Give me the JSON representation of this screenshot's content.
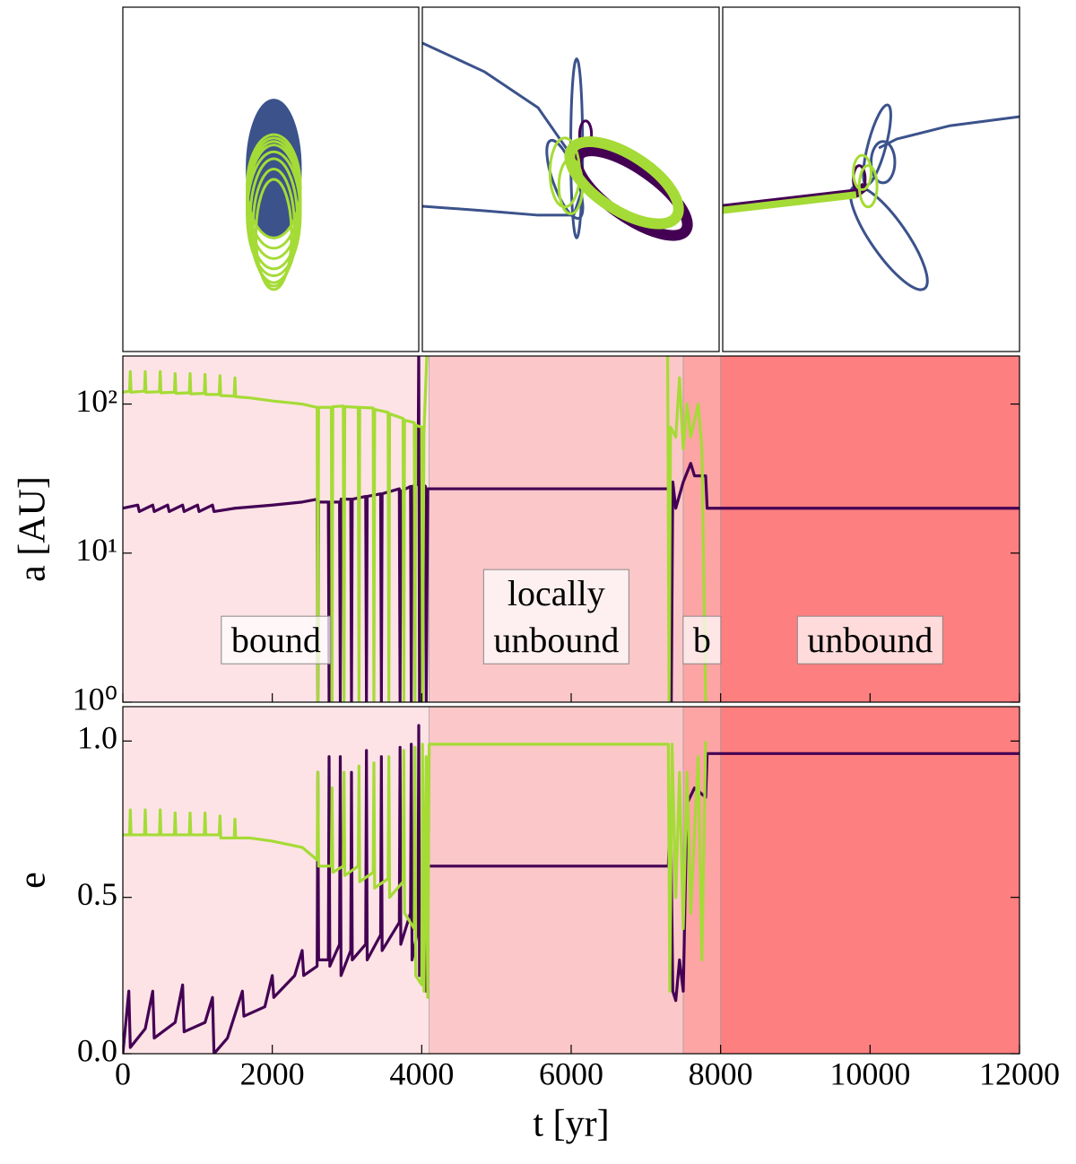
{
  "chart_data": [
    {
      "type": "orbit",
      "xlim": [
        0,
        100
      ],
      "ylim": [
        0,
        100
      ],
      "series": [
        {
          "color": "#3b528b",
          "fill": true,
          "linewidth": 3,
          "ellipses": [
            [
              51,
              53,
              9,
              20,
              0
            ]
          ]
        },
        {
          "color": "#a5db36",
          "linewidth": 3,
          "ellipses": [
            [
              51,
              48,
              9,
              15,
              0
            ],
            [
              51,
              46,
              9,
              16,
              0
            ],
            [
              51,
              44,
              9,
              17,
              0
            ],
            [
              51,
              42,
              9,
              18,
              0
            ],
            [
              51,
              40,
              9,
              18,
              0
            ],
            [
              51,
              38,
              8,
              18,
              0
            ],
            [
              51,
              36,
              7,
              17,
              0
            ],
            [
              51,
              34,
              6,
              16,
              0
            ]
          ]
        }
      ]
    },
    {
      "type": "orbit",
      "xlim": [
        0,
        100
      ],
      "ylim": [
        0,
        100
      ],
      "series": [
        {
          "color": "#3b528b",
          "linewidth": 3,
          "paths": [
            [
              [
                0,
                89.6
              ],
              [
                20.8,
                81.3
              ],
              [
                39,
                70.8
              ],
              [
                49.5,
                57.8
              ],
              [
                54,
                47.4
              ],
              [
                51,
                39.6
              ],
              [
                39,
                39.6
              ],
              [
                20.8,
                40.9
              ],
              [
                0,
                42.2
              ]
            ]
          ],
          "ellipses": [
            [
              52,
              59,
              2,
              26,
              0
            ],
            [
              48,
              50,
              4,
              12,
              20
            ]
          ]
        },
        {
          "color": "#440154",
          "linewidth": 12,
          "ellipses": [
            [
              70.7,
              46,
              22,
              7,
              -35
            ]
          ]
        },
        {
          "color": "#440154",
          "linewidth": 3,
          "ellipses": [
            [
              55,
              63,
              2,
              4,
              0
            ]
          ]
        },
        {
          "color": "#a5db36",
          "linewidth": 12,
          "ellipses": [
            [
              68,
              49,
              21,
              8,
              -33
            ]
          ]
        },
        {
          "color": "#a5db36",
          "linewidth": 3,
          "ellipses": [
            [
              48,
              52,
              5,
              10,
              0
            ],
            [
              50,
              48,
              4,
              8,
              0
            ]
          ]
        }
      ]
    },
    {
      "type": "orbit",
      "xlim": [
        0,
        100
      ],
      "ylim": [
        0,
        100
      ],
      "series": [
        {
          "color": "#3b528b",
          "linewidth": 3,
          "paths": [
            [
              [
                100,
                68.2
              ],
              [
                76.7,
                65.6
              ],
              [
                58.6,
                61.7
              ],
              [
                52.6,
                59.1
              ]
            ]
          ],
          "ellipses": [
            [
              56,
              33,
              6,
              18,
              35
            ],
            [
              52,
              60,
              3,
              12,
              -15
            ],
            [
              54,
              55,
              4,
              6,
              0
            ]
          ]
        },
        {
          "color": "#440154",
          "linewidth": 10,
          "paths": [
            [
              [
                0,
                41.5
              ],
              [
                45,
                46
              ],
              [
                48,
                48
              ]
            ]
          ]
        },
        {
          "color": "#440154",
          "linewidth": 3,
          "ellipses": [
            [
              46,
              50,
              2,
              4,
              0
            ]
          ]
        },
        {
          "color": "#a5db36",
          "linewidth": 8,
          "paths": [
            [
              [
                0,
                41
              ],
              [
                45,
                45.5
              ]
            ]
          ]
        },
        {
          "color": "#a5db36",
          "linewidth": 3,
          "ellipses": [
            [
              47,
              52,
              3,
              5,
              0
            ],
            [
              49,
              48,
              3,
              6,
              0
            ]
          ]
        }
      ]
    },
    {
      "type": "line",
      "log_y": true,
      "ylabel": "a [AU]",
      "xlim": [
        0,
        12000
      ],
      "ylim": [
        1,
        210
      ],
      "xticks": [
        0,
        2000,
        4000,
        6000,
        8000,
        10000,
        12000
      ],
      "xtick_labels": false,
      "yticks": [
        {
          "value": 1,
          "label": "10⁰"
        },
        {
          "value": 10,
          "label": "10¹"
        },
        {
          "value": 100,
          "label": "10²"
        }
      ],
      "regions": [
        {
          "start": 0,
          "end": 4100,
          "color": "#fde3e5",
          "label": [
            "bound"
          ]
        },
        {
          "start": 4100,
          "end": 7500,
          "color": "#fcc7c8",
          "label": [
            "locally",
            "unbound"
          ]
        },
        {
          "start": 7500,
          "end": 8000,
          "color": "#fda4a5",
          "label": [
            "b"
          ]
        },
        {
          "start": 8000,
          "end": 12000,
          "color": "#fe7f7f",
          "label": [
            "unbound"
          ]
        }
      ],
      "series": [
        {
          "color": "#440154",
          "x": [
            0,
            200,
            220,
            400,
            420,
            600,
            620,
            800,
            820,
            1000,
            1020,
            1200,
            1220,
            1500,
            2000,
            2400,
            2600,
            2610,
            2620,
            2750,
            2760,
            2770,
            2900,
            2910,
            2920,
            3050,
            3060,
            3070,
            3250,
            3260,
            3270,
            3450,
            3460,
            3470,
            3700,
            3710,
            3720,
            3850,
            3860,
            3870,
            3950,
            3960,
            3970,
            3980,
            4050,
            4060,
            4080,
            7300,
            7320,
            7340,
            7360,
            7400,
            7500,
            7600,
            7650,
            7800,
            7820,
            12000
          ],
          "values": [
            20,
            21,
            19,
            21,
            19,
            21,
            19,
            21,
            19,
            21,
            19,
            21,
            19,
            20,
            21,
            22,
            23,
            1,
            22,
            22,
            1,
            22,
            22,
            1,
            23,
            23,
            1,
            23,
            24,
            1,
            24,
            25,
            1,
            25,
            27,
            1,
            26,
            28,
            1,
            28,
            29,
            250,
            1,
            30,
            28,
            1,
            27,
            27,
            40,
            1,
            30,
            20,
            30,
            40,
            33,
            33,
            20,
            20
          ]
        },
        {
          "color": "#a5db36",
          "x": [
            0,
            90,
            100,
            110,
            290,
            300,
            310,
            490,
            500,
            510,
            690,
            700,
            710,
            890,
            900,
            910,
            1090,
            1100,
            1110,
            1290,
            1300,
            1310,
            1490,
            1500,
            1510,
            1700,
            2000,
            2400,
            2600,
            2610,
            2620,
            2790,
            2800,
            2810,
            2950,
            2960,
            2970,
            3150,
            3160,
            3170,
            3350,
            3360,
            3370,
            3550,
            3560,
            3570,
            3750,
            3760,
            3770,
            3900,
            3910,
            3920,
            4000,
            4010,
            4030,
            4080,
            4090,
            7290,
            7310,
            7330,
            7400,
            7450,
            7500,
            7550,
            7600,
            7700,
            7750,
            7800
          ],
          "values": [
            120,
            122,
            165,
            120,
            122,
            165,
            120,
            121,
            165,
            119,
            120,
            160,
            118,
            119,
            160,
            117,
            118,
            158,
            116,
            116,
            155,
            114,
            113,
            150,
            112,
            110,
            105,
            100,
            95,
            1,
            95,
            95,
            1,
            96,
            97,
            1,
            96,
            95,
            1,
            95,
            94,
            1,
            92,
            88,
            1,
            86,
            80,
            1,
            78,
            75,
            1,
            72,
            70,
            1,
            65,
            300,
            null,
            300,
            1,
            70,
            60,
            150,
            50,
            100,
            60,
            100,
            50,
            1
          ]
        }
      ]
    },
    {
      "type": "line",
      "log_y": false,
      "ylabel": "e",
      "xlabel": "t [yr]",
      "xlim": [
        0,
        12000
      ],
      "ylim": [
        0,
        1.11
      ],
      "xticks": [
        0,
        2000,
        4000,
        6000,
        8000,
        10000,
        12000
      ],
      "xtick_labels": true,
      "yticks": [
        {
          "value": 0,
          "label": "0.0"
        },
        0.5,
        {
          "value": 1,
          "label": "1.0"
        }
      ],
      "regions": [
        {
          "start": 0,
          "end": 4100,
          "color": "#fde3e5"
        },
        {
          "start": 4100,
          "end": 7500,
          "color": "#fcc7c8"
        },
        {
          "start": 7500,
          "end": 8000,
          "color": "#fda4a5"
        },
        {
          "start": 8000,
          "end": 12000,
          "color": "#fe7f7f"
        }
      ],
      "series": [
        {
          "color": "#440154",
          "x": [
            0,
            80,
            100,
            300,
            400,
            420,
            700,
            800,
            820,
            1100,
            1200,
            1220,
            1400,
            1600,
            1620,
            1900,
            2000,
            2020,
            2300,
            2400,
            2420,
            2600,
            2610,
            2620,
            2750,
            2760,
            2770,
            2900,
            2910,
            2920,
            3050,
            3060,
            3070,
            3250,
            3260,
            3270,
            3450,
            3460,
            3470,
            3700,
            3710,
            3720,
            3850,
            3860,
            3870,
            3950,
            3960,
            3970,
            4050,
            4060,
            4080,
            7300,
            7330,
            7360,
            7400,
            7450,
            7500,
            7550,
            7650,
            7800,
            7820,
            12000
          ],
          "values": [
            0,
            0.2,
            0.02,
            0.08,
            0.2,
            0.05,
            0.1,
            0.22,
            0.07,
            0.1,
            0.18,
            0.0,
            0.05,
            0.2,
            0.12,
            0.15,
            0.25,
            0.18,
            0.25,
            0.33,
            0.25,
            0.28,
            0.9,
            0.3,
            0.3,
            0.95,
            0.28,
            0.35,
            0.95,
            0.25,
            0.33,
            0.9,
            0.3,
            0.35,
            0.97,
            0.3,
            0.38,
            0.95,
            0.33,
            0.42,
            0.98,
            0.35,
            0.45,
            0.99,
            0.3,
            0.4,
            1.05,
            0.25,
            0.5,
            0.2,
            0.6,
            0.6,
            0.8,
            0.2,
            0.17,
            0.3,
            0.2,
            0.8,
            0.85,
            0.82,
            0.96,
            0.96
          ]
        },
        {
          "color": "#a5db36",
          "x": [
            0,
            90,
            100,
            110,
            290,
            300,
            310,
            490,
            500,
            510,
            690,
            700,
            710,
            890,
            900,
            910,
            1090,
            1100,
            1110,
            1290,
            1300,
            1310,
            1490,
            1500,
            1510,
            1700,
            2000,
            2400,
            2600,
            2610,
            2620,
            2790,
            2800,
            2810,
            2950,
            2960,
            2970,
            3150,
            3160,
            3170,
            3350,
            3360,
            3370,
            3550,
            3560,
            3570,
            3750,
            3760,
            3770,
            3900,
            3910,
            3920,
            4000,
            4010,
            4030,
            4060,
            4080,
            4100,
            7300,
            7320,
            7350,
            7400,
            7450,
            7500,
            7550,
            7600,
            7700,
            7750,
            7800
          ],
          "values": [
            0.7,
            0.7,
            0.78,
            0.7,
            0.7,
            0.78,
            0.7,
            0.7,
            0.78,
            0.7,
            0.7,
            0.77,
            0.7,
            0.7,
            0.77,
            0.7,
            0.7,
            0.77,
            0.7,
            0.7,
            0.76,
            0.69,
            0.69,
            0.75,
            0.69,
            0.69,
            0.68,
            0.66,
            0.62,
            0.9,
            0.6,
            0.6,
            0.85,
            0.58,
            0.6,
            0.9,
            0.57,
            0.6,
            0.92,
            0.55,
            0.58,
            0.93,
            0.53,
            0.56,
            0.95,
            0.5,
            0.55,
            0.97,
            0.45,
            0.4,
            0.98,
            0.25,
            0.22,
            0.99,
            0.2,
            0.95,
            0.18,
            0.99,
            0.99,
            0.2,
            0.99,
            0.5,
            0.9,
            0.4,
            0.9,
            0.45,
            0.95,
            0.3,
            1.0
          ]
        }
      ]
    }
  ]
}
